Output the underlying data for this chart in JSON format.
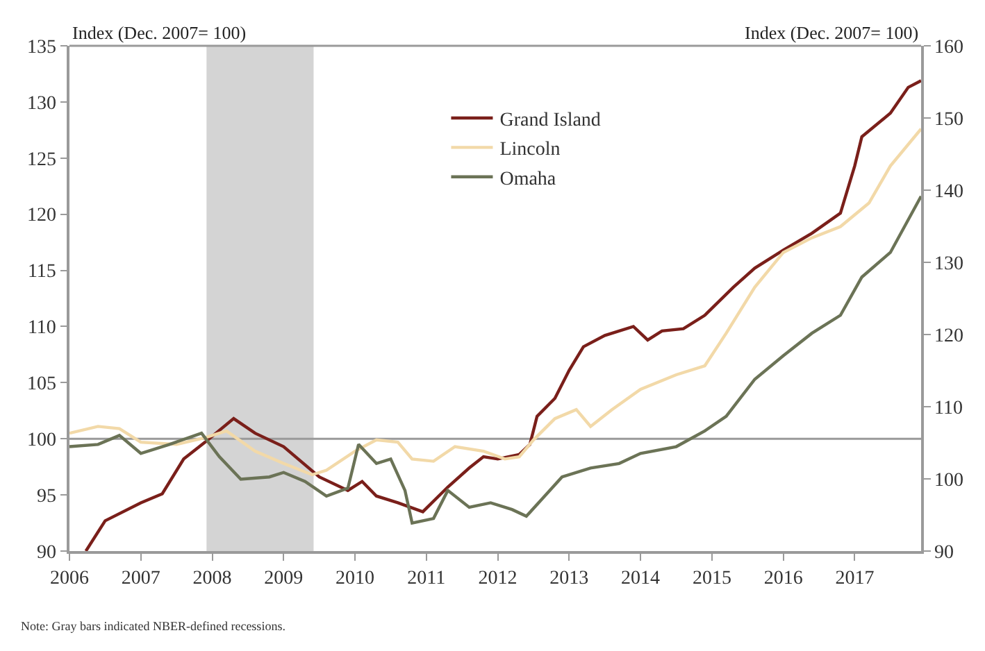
{
  "chart_data": {
    "type": "line",
    "ylabel": "Index (Dec. 2007= 100)",
    "y2label": "Index (Dec. 2007= 100)",
    "xlim": [
      2006,
      2017.93
    ],
    "xticks": [
      2006,
      2007,
      2008,
      2009,
      2010,
      2011,
      2012,
      2013,
      2014,
      2015,
      2016,
      2017
    ],
    "ylim": [
      90,
      135
    ],
    "yticks": [
      90,
      95,
      100,
      105,
      110,
      115,
      120,
      125,
      130,
      135
    ],
    "y2lim": [
      90,
      160
    ],
    "y2ticks": [
      90,
      100,
      110,
      120,
      130,
      140,
      150,
      160
    ],
    "legend": "top",
    "grid": false,
    "marker": "none",
    "line_style": "solid",
    "series": [
      {
        "name": "Grand Island",
        "color": "#7a1f1a",
        "x": [
          2006.23,
          2006.5,
          2007,
          2007.3,
          2007.6,
          2007.9,
          2008.3,
          2008.6,
          2009,
          2009.5,
          2009.9,
          2010.1,
          2010.3,
          2010.6,
          2010.95,
          2011.3,
          2011.6,
          2011.8,
          2012,
          2012.3,
          2012.45,
          2012.55,
          2012.8,
          2013,
          2013.2,
          2013.5,
          2013.9,
          2014.1,
          2014.3,
          2014.6,
          2014.9,
          2015.3,
          2015.6,
          2016,
          2016.4,
          2016.8,
          2017,
          2017.1,
          2017.5,
          2017.75,
          2017.93
        ],
        "values": [
          90,
          92.7,
          94.3,
          95.1,
          98.2,
          99.7,
          101.8,
          100.5,
          99.3,
          96.6,
          95.4,
          96.2,
          94.9,
          94.3,
          93.5,
          95.7,
          97.4,
          98.4,
          98.2,
          98.6,
          99.5,
          102,
          103.6,
          106.1,
          108.2,
          109.2,
          110,
          108.8,
          109.6,
          109.8,
          111,
          113.5,
          115.2,
          116.8,
          118.3,
          120.1,
          124.3,
          126.9,
          129,
          131.3,
          131.9
        ]
      },
      {
        "name": "Lincoln",
        "color": "#f2d9a8",
        "x": [
          2006,
          2006.4,
          2006.7,
          2007,
          2007.5,
          2007.9,
          2008.2,
          2008.6,
          2009,
          2009.4,
          2009.6,
          2010,
          2010.3,
          2010.6,
          2010.8,
          2011.1,
          2011.4,
          2011.8,
          2012.1,
          2012.3,
          2012.5,
          2012.8,
          2013.1,
          2013.3,
          2013.6,
          2014,
          2014.5,
          2014.9,
          2015.2,
          2015.6,
          2016,
          2016.4,
          2016.8,
          2017.2,
          2017.5,
          2017.93
        ],
        "values": [
          100.5,
          101.1,
          100.9,
          99.7,
          99.5,
          100.1,
          100.7,
          98.9,
          97.8,
          96.8,
          97.2,
          98.9,
          99.9,
          99.7,
          98.2,
          98,
          99.3,
          98.9,
          98.2,
          98.4,
          99.9,
          101.8,
          102.6,
          101.1,
          102.6,
          104.4,
          105.7,
          106.5,
          109.4,
          113.5,
          116.6,
          117.9,
          118.9,
          121,
          124.3,
          127.6
        ]
      },
      {
        "name": "Omaha",
        "color": "#6b7356",
        "x": [
          2006,
          2006.4,
          2006.7,
          2007,
          2007.4,
          2007.85,
          2008.1,
          2008.4,
          2008.8,
          2009,
          2009.3,
          2009.6,
          2009.9,
          2010.05,
          2010.3,
          2010.5,
          2010.7,
          2010.8,
          2011.1,
          2011.3,
          2011.6,
          2011.9,
          2012.2,
          2012.4,
          2012.6,
          2012.9,
          2013.3,
          2013.7,
          2014,
          2014.5,
          2014.9,
          2015.2,
          2015.6,
          2016,
          2016.4,
          2016.8,
          2017.1,
          2017.5,
          2017.93
        ],
        "values": [
          99.3,
          99.5,
          100.3,
          98.7,
          99.5,
          100.5,
          98.4,
          96.4,
          96.6,
          97,
          96.2,
          94.9,
          95.6,
          99.5,
          97.8,
          98.2,
          95.4,
          92.5,
          92.9,
          95.4,
          93.9,
          94.3,
          93.7,
          93.1,
          94.5,
          96.6,
          97.4,
          97.8,
          98.7,
          99.3,
          100.7,
          102,
          105.3,
          107.4,
          109.4,
          111,
          114.4,
          116.6,
          121.6
        ]
      }
    ],
    "ref_lines": [
      {
        "axis": "y",
        "value": 100,
        "color": "#9a9a9a"
      }
    ],
    "bands": [
      {
        "axis": "x",
        "from": 2007.92,
        "to": 2009.42,
        "color": "#d4d4d4"
      }
    ],
    "annotations": [
      "Note: Gray bars indicated NBER-defined recessions."
    ]
  }
}
